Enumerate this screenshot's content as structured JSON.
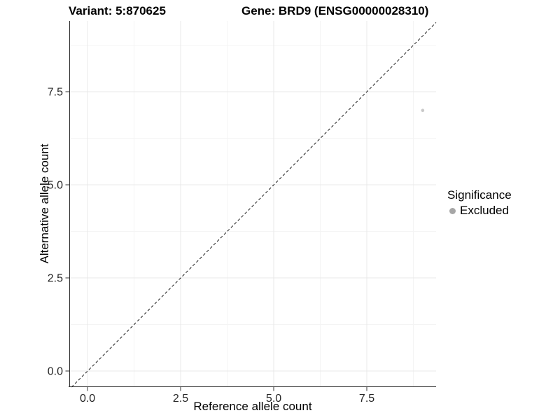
{
  "figure": {
    "title_variant": "Variant: 5:870625",
    "title_gene": "Gene: BRD9 (ENSG00000028310)"
  },
  "chart_data": {
    "type": "scatter",
    "xlabel": "Reference allele count",
    "ylabel": "Alternative allele count",
    "x_ticks": [
      0,
      2.5,
      5,
      7.5
    ],
    "x_tick_labels": [
      "0.0",
      "2.5",
      "5.0",
      "7.5"
    ],
    "y_ticks": [
      0,
      2.5,
      5,
      7.5
    ],
    "y_tick_labels": [
      "0.0",
      "2.5",
      "5.0",
      "7.5"
    ],
    "xlim": [
      -0.49,
      9.36
    ],
    "ylim": [
      -0.43,
      9.4
    ],
    "grid": "major+minor",
    "points": [
      {
        "x": 9,
        "y": 7,
        "series": "Excluded"
      }
    ],
    "identity_line": {
      "slope": 1,
      "intercept": 0,
      "style": "dashed"
    },
    "legend": {
      "title": "Significance",
      "position": "right",
      "items": [
        {
          "label": "Excluded",
          "color": "#a6a6a6"
        }
      ]
    }
  },
  "colors": {
    "background": "#ffffff",
    "title": "#000000",
    "axis_line": "#333333",
    "tick": "#333333",
    "tick_label": "#262626",
    "grid_major": "#e9e9e9",
    "grid_minor": "#f4f4f4",
    "identity_line": "#1a1a1a",
    "point": "#c9c9c9"
  }
}
